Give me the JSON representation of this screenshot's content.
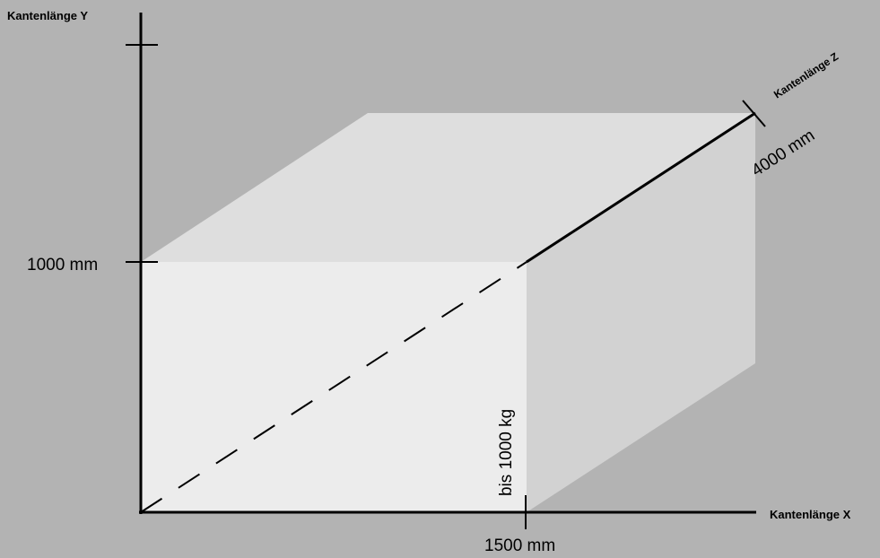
{
  "axes": {
    "y": {
      "name": "Kantenlänge Y",
      "dimension": "1000 mm"
    },
    "x": {
      "name": "Kantenlänge X",
      "dimension": "1500 mm"
    },
    "z": {
      "name": "Kantenlänge Z",
      "dimension": "4000 mm"
    }
  },
  "load": "bis 1000 kg",
  "colors": {
    "background": "#b3b3b3",
    "front_face": "#ececec",
    "top_face": "#dedede",
    "side_face": "#d2d2d2",
    "lines": "#000000"
  }
}
